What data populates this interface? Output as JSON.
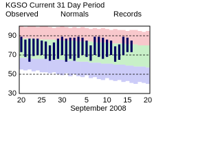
{
  "chart_data": {
    "type": "range",
    "title": "KGSO Current 31 Day Period",
    "xlabel": "September 2008",
    "categories": [
      "20",
      null,
      null,
      null,
      null,
      "25",
      null,
      null,
      null,
      null,
      "30",
      null,
      null,
      null,
      null,
      null,
      "5",
      null,
      null,
      null,
      null,
      "10",
      null,
      null,
      null,
      null,
      "15",
      null,
      null,
      null,
      null,
      "20"
    ],
    "series": [
      {
        "name": "Observed",
        "color": "#000060",
        "high": [
          89,
          86,
          87,
          87,
          87,
          85,
          84,
          80,
          83,
          87,
          89,
          87,
          88,
          88,
          89,
          88,
          85,
          80,
          89,
          89,
          88,
          86,
          85,
          79,
          81,
          89,
          88,
          85,
          null,
          null,
          null,
          null
        ],
        "low": [
          73,
          68,
          63,
          69,
          70,
          70,
          66,
          64,
          65,
          66,
          70,
          63,
          66,
          64,
          67,
          70,
          68,
          64,
          70,
          68,
          66,
          68,
          70,
          63,
          65,
          70,
          73,
          73,
          null,
          null,
          null,
          null
        ]
      },
      {
        "name": "Normals",
        "color": "#c8f0c8",
        "text_color": "#008000",
        "high": [
          87,
          87,
          87,
          87,
          86,
          86,
          86,
          86,
          86,
          85,
          85,
          85,
          85,
          85,
          84,
          84,
          84,
          84,
          83,
          83,
          83,
          83,
          82,
          82,
          82,
          82,
          81,
          81,
          81,
          80,
          80,
          80
        ],
        "low": [
          67,
          67,
          66,
          66,
          66,
          66,
          66,
          65,
          65,
          65,
          65,
          64,
          64,
          64,
          63,
          63,
          63,
          62,
          62,
          62,
          61,
          61,
          61,
          60,
          60,
          60,
          59,
          59,
          58,
          58,
          58,
          57
        ]
      },
      {
        "name": "Records",
        "color": "#f8c8cc",
        "low_color": "#ccccf8",
        "text_color": "#c080e0",
        "high": [
          100,
          99,
          100,
          100,
          99,
          100,
          100,
          99,
          98,
          99,
          100,
          99,
          98,
          99,
          98,
          99,
          98,
          97,
          98,
          97,
          98,
          97,
          96,
          97,
          96,
          96,
          95,
          96,
          96,
          95,
          94,
          95
        ],
        "low": [
          55,
          54,
          55,
          53,
          54,
          52,
          52,
          51,
          52,
          50,
          49,
          51,
          48,
          50,
          48,
          47,
          49,
          46,
          47,
          45,
          44,
          46,
          44,
          43,
          44,
          42,
          43,
          41,
          40,
          42,
          41,
          40
        ]
      }
    ],
    "ylim": [
      30,
      100
    ],
    "yticks": [
      30,
      50,
      70,
      90
    ],
    "grid": true
  }
}
